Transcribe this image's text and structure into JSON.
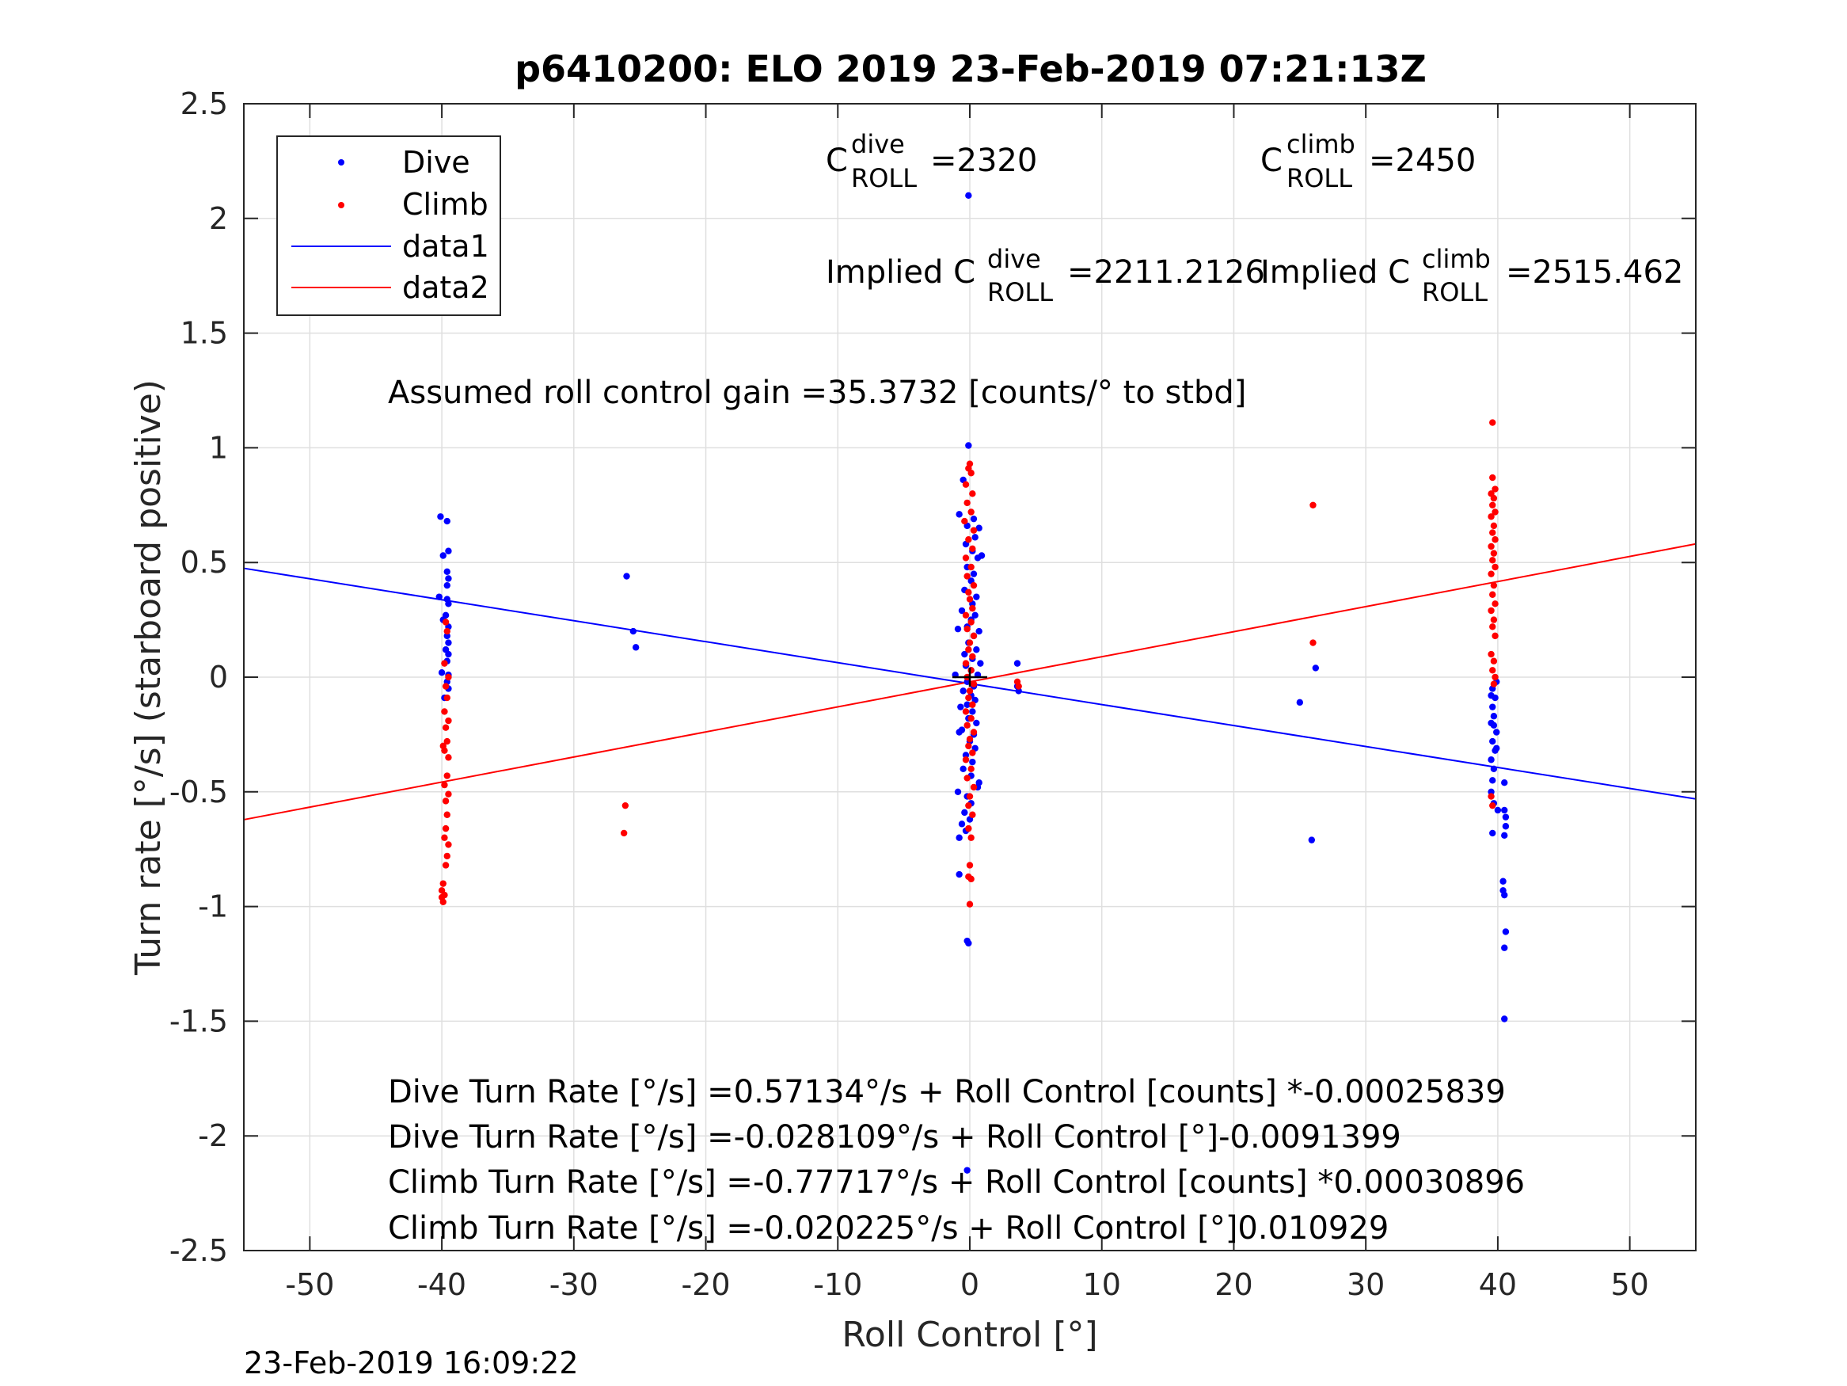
{
  "chart_data": {
    "type": "scatter",
    "title": "p6410200: ELO 2019 23-Feb-2019 07:21:13Z",
    "xlabel": "Roll Control [°]",
    "ylabel": "Turn rate [°/s] (starboard positive)",
    "xlim": [
      -55,
      55
    ],
    "ylim": [
      -2.5,
      2.5
    ],
    "xticks": [
      -50,
      -40,
      -30,
      -20,
      -10,
      0,
      10,
      20,
      30,
      40,
      50
    ],
    "yticks": [
      -2.5,
      -2,
      -1.5,
      -1,
      -0.5,
      0,
      0.5,
      1,
      1.5,
      2,
      2.5
    ],
    "grid": true,
    "legend_position": "top-left",
    "colors": {
      "dive": "#0000ff",
      "climb": "#ff0000",
      "marker": "#000000"
    },
    "series": [
      {
        "name": "Dive",
        "kind": "scatter",
        "color": "#0000ff",
        "points": [
          [
            -40.1,
            0.7
          ],
          [
            -39.6,
            0.68
          ],
          [
            -39.9,
            0.53
          ],
          [
            -39.5,
            0.55
          ],
          [
            -39.6,
            0.46
          ],
          [
            -39.5,
            0.43
          ],
          [
            -39.6,
            0.4
          ],
          [
            -40.2,
            0.35
          ],
          [
            -39.6,
            0.34
          ],
          [
            -39.5,
            0.32
          ],
          [
            -39.7,
            0.27
          ],
          [
            -39.9,
            0.25
          ],
          [
            -39.5,
            0.22
          ],
          [
            -39.6,
            0.18
          ],
          [
            -39.5,
            0.15
          ],
          [
            -39.7,
            0.12
          ],
          [
            -39.5,
            0.1
          ],
          [
            -39.6,
            0.07
          ],
          [
            -40.0,
            0.02
          ],
          [
            -39.5,
            0.01
          ],
          [
            -39.6,
            -0.02
          ],
          [
            -39.5,
            -0.05
          ],
          [
            -39.8,
            -0.09
          ],
          [
            -26.0,
            0.44
          ],
          [
            -25.5,
            0.2
          ],
          [
            -25.3,
            0.13
          ],
          [
            -0.1,
            2.1
          ],
          [
            -0.1,
            1.01
          ],
          [
            -0.5,
            0.86
          ],
          [
            -0.8,
            0.71
          ],
          [
            0.3,
            0.69
          ],
          [
            -0.2,
            0.66
          ],
          [
            0.7,
            0.65
          ],
          [
            0.4,
            0.61
          ],
          [
            -0.3,
            0.58
          ],
          [
            0.2,
            0.55
          ],
          [
            0.6,
            0.52
          ],
          [
            0.9,
            0.53
          ],
          [
            -0.2,
            0.48
          ],
          [
            0.3,
            0.45
          ],
          [
            0.1,
            0.42
          ],
          [
            -0.4,
            0.38
          ],
          [
            0.5,
            0.35
          ],
          [
            0.2,
            0.32
          ],
          [
            -0.6,
            0.29
          ],
          [
            0.4,
            0.27
          ],
          [
            0.1,
            0.25
          ],
          [
            -0.2,
            0.22
          ],
          [
            0.7,
            0.2
          ],
          [
            -0.9,
            0.21
          ],
          [
            0.3,
            0.18
          ],
          [
            -0.1,
            0.15
          ],
          [
            0.5,
            0.12
          ],
          [
            -0.4,
            0.1
          ],
          [
            0.2,
            0.08
          ],
          [
            0.8,
            0.06
          ],
          [
            -0.3,
            0.05
          ],
          [
            0.1,
            0.03
          ],
          [
            -1.1,
            0.01
          ],
          [
            0.6,
            0.01
          ],
          [
            -0.2,
            -0.02
          ],
          [
            0.3,
            -0.04
          ],
          [
            -0.5,
            -0.06
          ],
          [
            0.1,
            -0.08
          ],
          [
            0.4,
            -0.1
          ],
          [
            -0.2,
            -0.12
          ],
          [
            -0.7,
            -0.13
          ],
          [
            0.2,
            -0.15
          ],
          [
            -0.1,
            -0.18
          ],
          [
            0.5,
            -0.2
          ],
          [
            -0.6,
            -0.23
          ],
          [
            0.3,
            -0.25
          ],
          [
            -0.8,
            -0.24
          ],
          [
            0.0,
            -0.28
          ],
          [
            0.4,
            -0.31
          ],
          [
            -0.3,
            -0.34
          ],
          [
            0.2,
            -0.37
          ],
          [
            -0.5,
            -0.4
          ],
          [
            0.1,
            -0.43
          ],
          [
            0.7,
            -0.46
          ],
          [
            -0.9,
            -0.5
          ],
          [
            0.6,
            -0.48
          ],
          [
            -0.2,
            -0.52
          ],
          [
            0.1,
            -0.55
          ],
          [
            -0.4,
            -0.59
          ],
          [
            0.0,
            -0.62
          ],
          [
            -0.6,
            -0.64
          ],
          [
            -0.8,
            -0.7
          ],
          [
            -0.3,
            -0.67
          ],
          [
            -0.8,
            -0.86
          ],
          [
            -0.2,
            -1.15
          ],
          [
            -0.1,
            -1.16
          ],
          [
            -0.2,
            -2.15
          ],
          [
            3.6,
            0.06
          ],
          [
            3.6,
            -0.04
          ],
          [
            3.7,
            -0.06
          ],
          [
            25.0,
            -0.11
          ],
          [
            26.2,
            0.04
          ],
          [
            25.9,
            -0.71
          ],
          [
            40.5,
            -0.46
          ],
          [
            40.5,
            -0.58
          ],
          [
            40.6,
            -0.61
          ],
          [
            40.6,
            -0.65
          ],
          [
            40.5,
            -0.69
          ],
          [
            40.4,
            -0.89
          ],
          [
            40.4,
            -0.93
          ],
          [
            40.5,
            -0.95
          ],
          [
            40.6,
            -1.11
          ],
          [
            40.5,
            -1.18
          ],
          [
            40.5,
            -1.49
          ],
          [
            39.6,
            -0.68
          ],
          [
            39.7,
            -0.55
          ],
          [
            39.5,
            -0.5
          ],
          [
            39.6,
            -0.45
          ],
          [
            39.7,
            -0.4
          ],
          [
            39.5,
            -0.36
          ],
          [
            39.8,
            -0.32
          ],
          [
            39.6,
            -0.28
          ],
          [
            39.9,
            -0.24
          ],
          [
            39.5,
            -0.2
          ],
          [
            39.7,
            -0.17
          ],
          [
            39.6,
            -0.13
          ],
          [
            39.8,
            -0.09
          ],
          [
            39.6,
            -0.05
          ],
          [
            39.9,
            -0.02
          ],
          [
            39.5,
            -0.08
          ],
          [
            40.0,
            -0.58
          ],
          [
            39.9,
            -0.31
          ],
          [
            39.7,
            -0.21
          ]
        ]
      },
      {
        "name": "Climb",
        "kind": "scatter",
        "color": "#ff0000",
        "points": [
          [
            -39.7,
            0.24
          ],
          [
            -39.6,
            0.2
          ],
          [
            -39.8,
            0.06
          ],
          [
            -39.5,
            0.0
          ],
          [
            -39.7,
            -0.04
          ],
          [
            -39.6,
            -0.09
          ],
          [
            -39.8,
            -0.15
          ],
          [
            -39.5,
            -0.19
          ],
          [
            -39.7,
            -0.22
          ],
          [
            -39.6,
            -0.28
          ],
          [
            -39.8,
            -0.32
          ],
          [
            -39.5,
            -0.35
          ],
          [
            -39.9,
            -0.3
          ],
          [
            -39.6,
            -0.43
          ],
          [
            -39.8,
            -0.47
          ],
          [
            -39.5,
            -0.51
          ],
          [
            -39.7,
            -0.54
          ],
          [
            -39.6,
            -0.6
          ],
          [
            -39.7,
            -0.66
          ],
          [
            -39.8,
            -0.7
          ],
          [
            -39.5,
            -0.73
          ],
          [
            -39.6,
            -0.78
          ],
          [
            -39.7,
            -0.82
          ],
          [
            -39.9,
            -0.9
          ],
          [
            -40.0,
            -0.93
          ],
          [
            -39.8,
            -0.95
          ],
          [
            -39.9,
            -0.98
          ],
          [
            -40.0,
            -0.96
          ],
          [
            -26.1,
            -0.56
          ],
          [
            -26.2,
            -0.68
          ],
          [
            0.0,
            0.93
          ],
          [
            -0.1,
            0.91
          ],
          [
            0.1,
            0.89
          ],
          [
            -0.3,
            0.84
          ],
          [
            0.2,
            0.8
          ],
          [
            -0.2,
            0.76
          ],
          [
            0.1,
            0.72
          ],
          [
            -0.4,
            0.68
          ],
          [
            0.3,
            0.64
          ],
          [
            -0.1,
            0.6
          ],
          [
            0.2,
            0.56
          ],
          [
            -0.3,
            0.52
          ],
          [
            0.1,
            0.48
          ],
          [
            -0.2,
            0.44
          ],
          [
            0.3,
            0.4
          ],
          [
            -0.1,
            0.37
          ],
          [
            0.0,
            0.34
          ],
          [
            0.2,
            0.3
          ],
          [
            -0.3,
            0.27
          ],
          [
            0.1,
            0.24
          ],
          [
            -0.2,
            0.21
          ],
          [
            0.3,
            0.18
          ],
          [
            0.0,
            0.15
          ],
          [
            -0.1,
            0.12
          ],
          [
            0.2,
            0.09
          ],
          [
            -0.3,
            0.06
          ],
          [
            0.1,
            0.03
          ],
          [
            -0.2,
            0.0
          ],
          [
            0.3,
            -0.03
          ],
          [
            0.0,
            -0.06
          ],
          [
            -0.1,
            -0.09
          ],
          [
            0.2,
            -0.12
          ],
          [
            -0.3,
            -0.15
          ],
          [
            0.1,
            -0.18
          ],
          [
            -0.2,
            -0.21
          ],
          [
            0.3,
            -0.24
          ],
          [
            0.0,
            -0.27
          ],
          [
            -0.1,
            -0.3
          ],
          [
            0.2,
            -0.33
          ],
          [
            -0.3,
            -0.36
          ],
          [
            0.1,
            -0.4
          ],
          [
            -0.2,
            -0.44
          ],
          [
            0.3,
            -0.48
          ],
          [
            0.0,
            -0.52
          ],
          [
            -0.1,
            -0.56
          ],
          [
            0.2,
            -0.6
          ],
          [
            -0.1,
            -0.66
          ],
          [
            0.1,
            -0.7
          ],
          [
            0.0,
            -0.82
          ],
          [
            -0.1,
            -0.87
          ],
          [
            0.1,
            -0.88
          ],
          [
            0.0,
            -0.99
          ],
          [
            3.6,
            -0.02
          ],
          [
            3.7,
            -0.04
          ],
          [
            26.0,
            0.75
          ],
          [
            26.0,
            0.15
          ],
          [
            39.6,
            1.11
          ],
          [
            39.6,
            0.87
          ],
          [
            39.8,
            0.82
          ],
          [
            39.5,
            0.8
          ],
          [
            39.7,
            0.78
          ],
          [
            39.6,
            0.75
          ],
          [
            39.8,
            0.72
          ],
          [
            39.5,
            0.7
          ],
          [
            39.7,
            0.66
          ],
          [
            39.6,
            0.63
          ],
          [
            39.8,
            0.6
          ],
          [
            39.5,
            0.57
          ],
          [
            39.7,
            0.54
          ],
          [
            39.6,
            0.51
          ],
          [
            39.8,
            0.48
          ],
          [
            39.5,
            0.45
          ],
          [
            39.7,
            0.4
          ],
          [
            39.6,
            0.36
          ],
          [
            39.8,
            0.32
          ],
          [
            39.5,
            0.29
          ],
          [
            39.7,
            0.25
          ],
          [
            39.6,
            0.22
          ],
          [
            39.8,
            0.18
          ],
          [
            39.5,
            0.1
          ],
          [
            39.7,
            0.07
          ],
          [
            39.6,
            0.03
          ],
          [
            39.8,
            0.0
          ],
          [
            39.7,
            -0.03
          ],
          [
            39.5,
            -0.52
          ],
          [
            39.6,
            -0.56
          ]
        ]
      },
      {
        "name": "data1",
        "kind": "line",
        "color": "#0000ff",
        "intercept": -0.028109,
        "slope": -0.0091399
      },
      {
        "name": "data2",
        "kind": "line",
        "color": "#ff0000",
        "intercept": -0.020225,
        "slope": 0.010929
      }
    ],
    "center_marker": {
      "x": 0,
      "y": 0
    },
    "annotations": {
      "c_dive_base": "C",
      "c_dive_sup": "dive",
      "c_dive_sub": "ROLL",
      "c_dive_value": "=2320",
      "c_climb_base": "C",
      "c_climb_sup": "climb",
      "c_climb_sub": "ROLL",
      "c_climb_value": "=2450",
      "implied_dive_prefix": "Implied C",
      "implied_dive_sup": "dive",
      "implied_dive_sub": "ROLL",
      "implied_dive_value": "=2211.2126",
      "implied_climb_prefix": "Implied C",
      "implied_climb_sup": "climb",
      "implied_climb_sub": "ROLL",
      "implied_climb_value": "=2515.462",
      "gain": "Assumed roll control gain =35.3732 [counts/° to stbd]",
      "eq1": "Dive Turn Rate [°/s] =0.57134°/s + Roll Control [counts] *-0.00025839",
      "eq2": "Dive Turn Rate [°/s] =-0.028109°/s + Roll Control [°]-0.0091399",
      "eq3": "Climb Turn Rate [°/s] =-0.77717°/s + Roll Control [counts] *0.00030896",
      "eq4": "Climb Turn Rate [°/s] =-0.020225°/s + Roll Control [°]0.010929"
    },
    "timestamp": "23-Feb-2019 16:09:22"
  }
}
